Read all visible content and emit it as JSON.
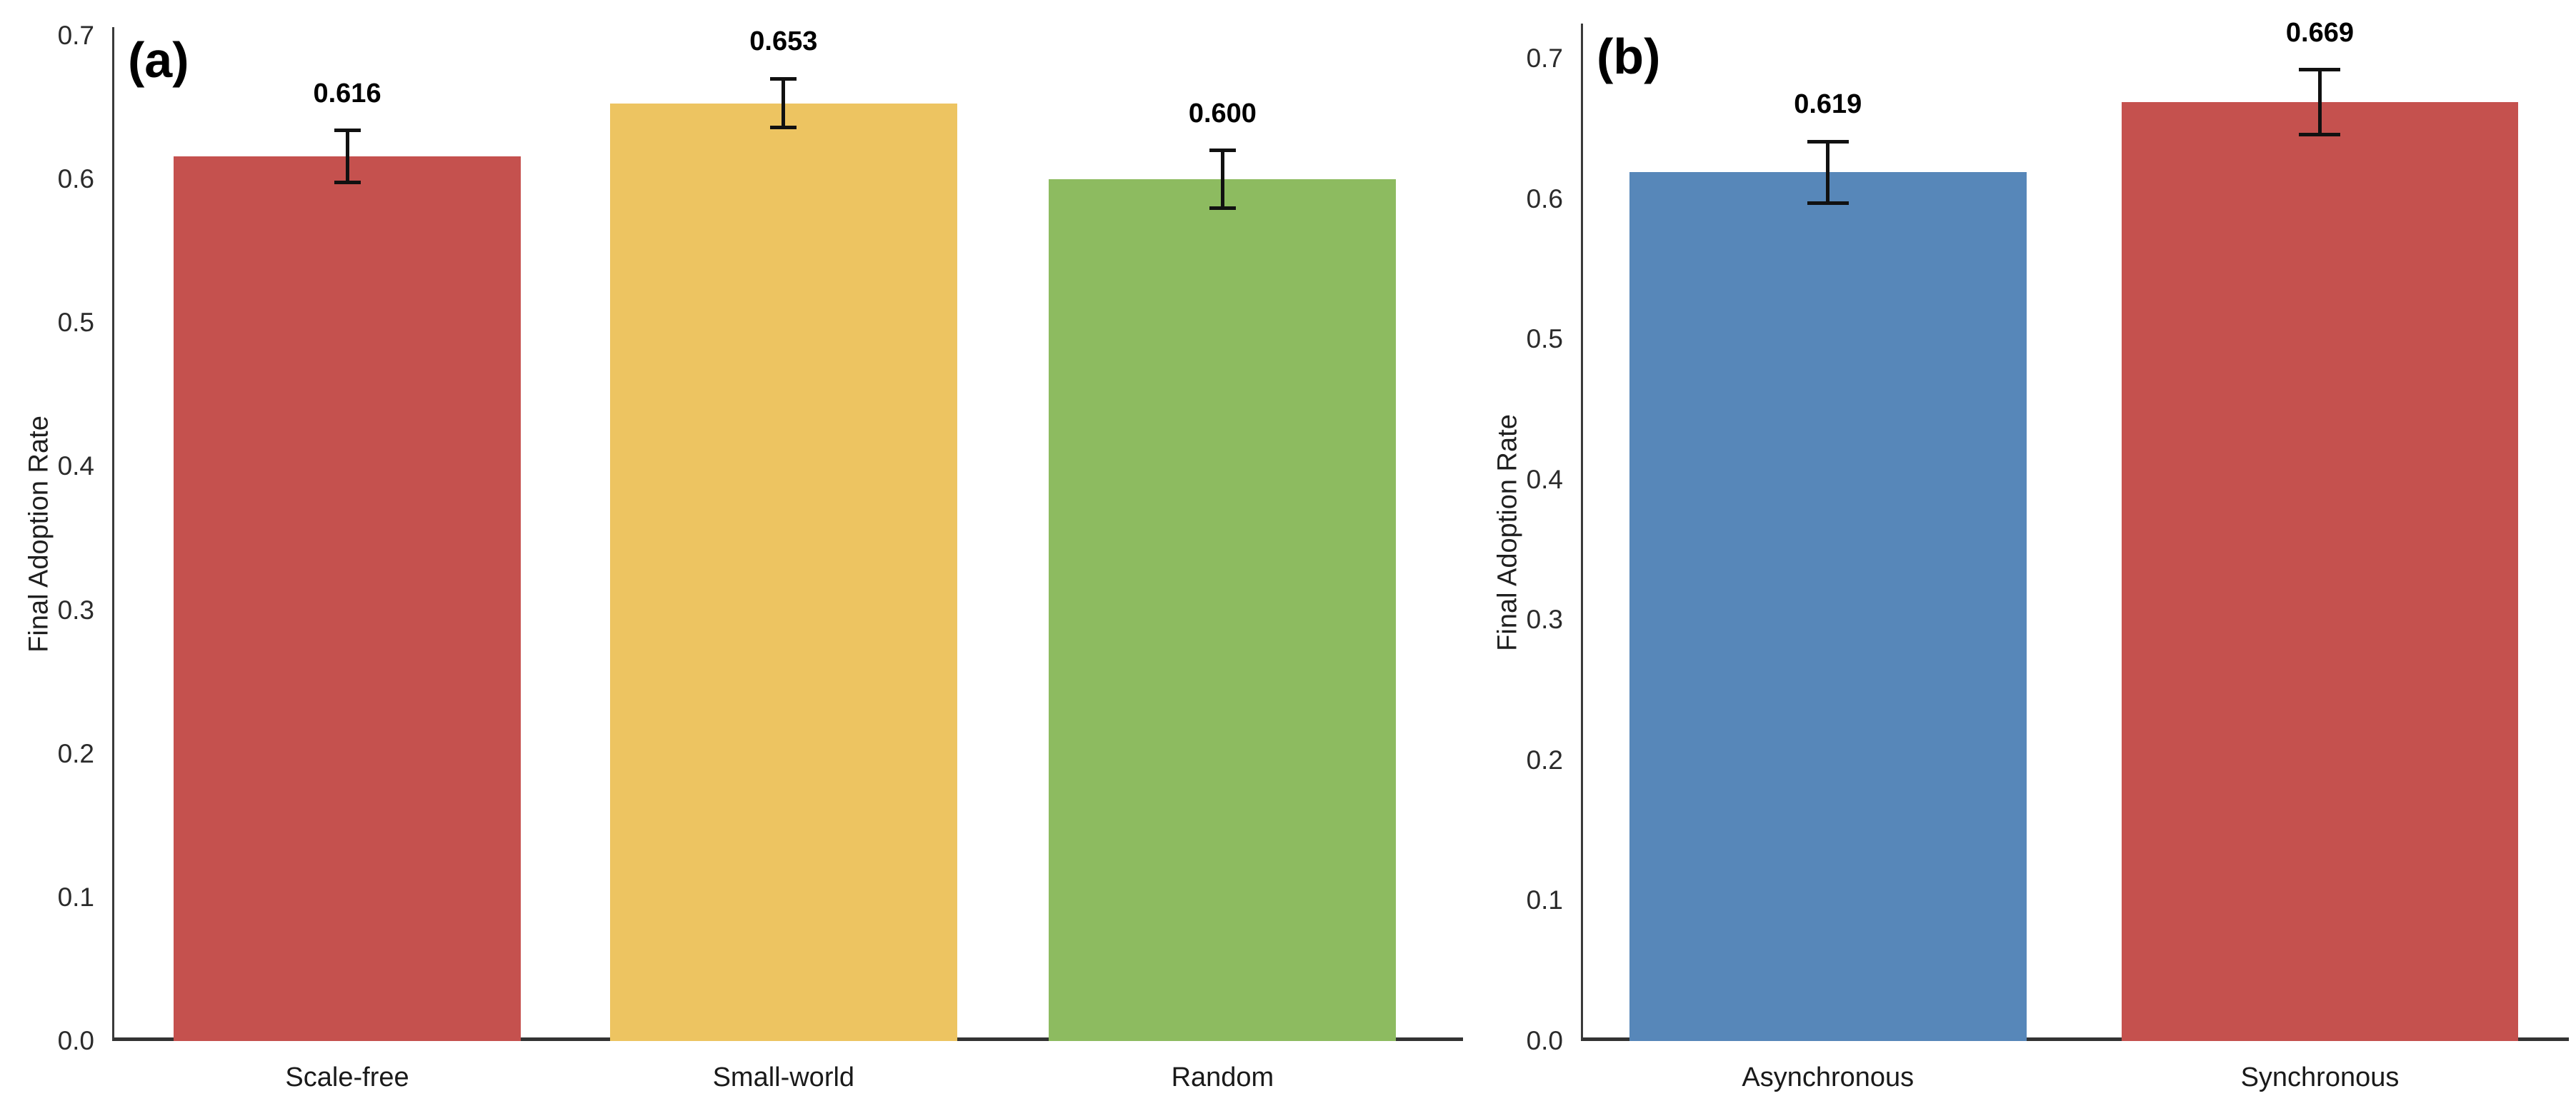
{
  "figure": {
    "background_color": "#ffffff",
    "axis_spine_color": "#3a3a3a",
    "errorbar_color": "#111111",
    "tick_text_color": "#2b2b2b",
    "label_text_color": "#000000"
  },
  "chart_data": [
    {
      "type": "bar",
      "panel_label": "(a)",
      "title": "",
      "xlabel": "",
      "ylabel": "Final Adoption Rate",
      "categories": [
        "Scale-free",
        "Small-world",
        "Random"
      ],
      "values": [
        0.616,
        0.653,
        0.6
      ],
      "errors": [
        0.018,
        0.017,
        0.02
      ],
      "value_labels": [
        "0.616",
        "0.653",
        "0.600"
      ],
      "bar_colors": [
        "#C5514E",
        "#EDC461",
        "#8DBB60"
      ],
      "yticks": [
        "0.0",
        "0.1",
        "0.2",
        "0.3",
        "0.4",
        "0.5",
        "0.6",
        "0.7"
      ],
      "ylim": [
        0,
        0.706
      ],
      "grid": false,
      "legend": null
    },
    {
      "type": "bar",
      "panel_label": "(b)",
      "title": "",
      "xlabel": "",
      "ylabel": "Final Adoption Rate",
      "categories": [
        "Asynchronous",
        "Synchronous"
      ],
      "values": [
        0.619,
        0.669
      ],
      "errors": [
        0.022,
        0.023
      ],
      "value_labels": [
        "0.619",
        "0.669"
      ],
      "bar_colors": [
        "#5787B9",
        "#C5514E"
      ],
      "yticks": [
        "0.0",
        "0.1",
        "0.2",
        "0.3",
        "0.4",
        "0.5",
        "0.6",
        "0.7"
      ],
      "ylim": [
        0,
        0.725
      ],
      "grid": false,
      "legend": null
    }
  ]
}
